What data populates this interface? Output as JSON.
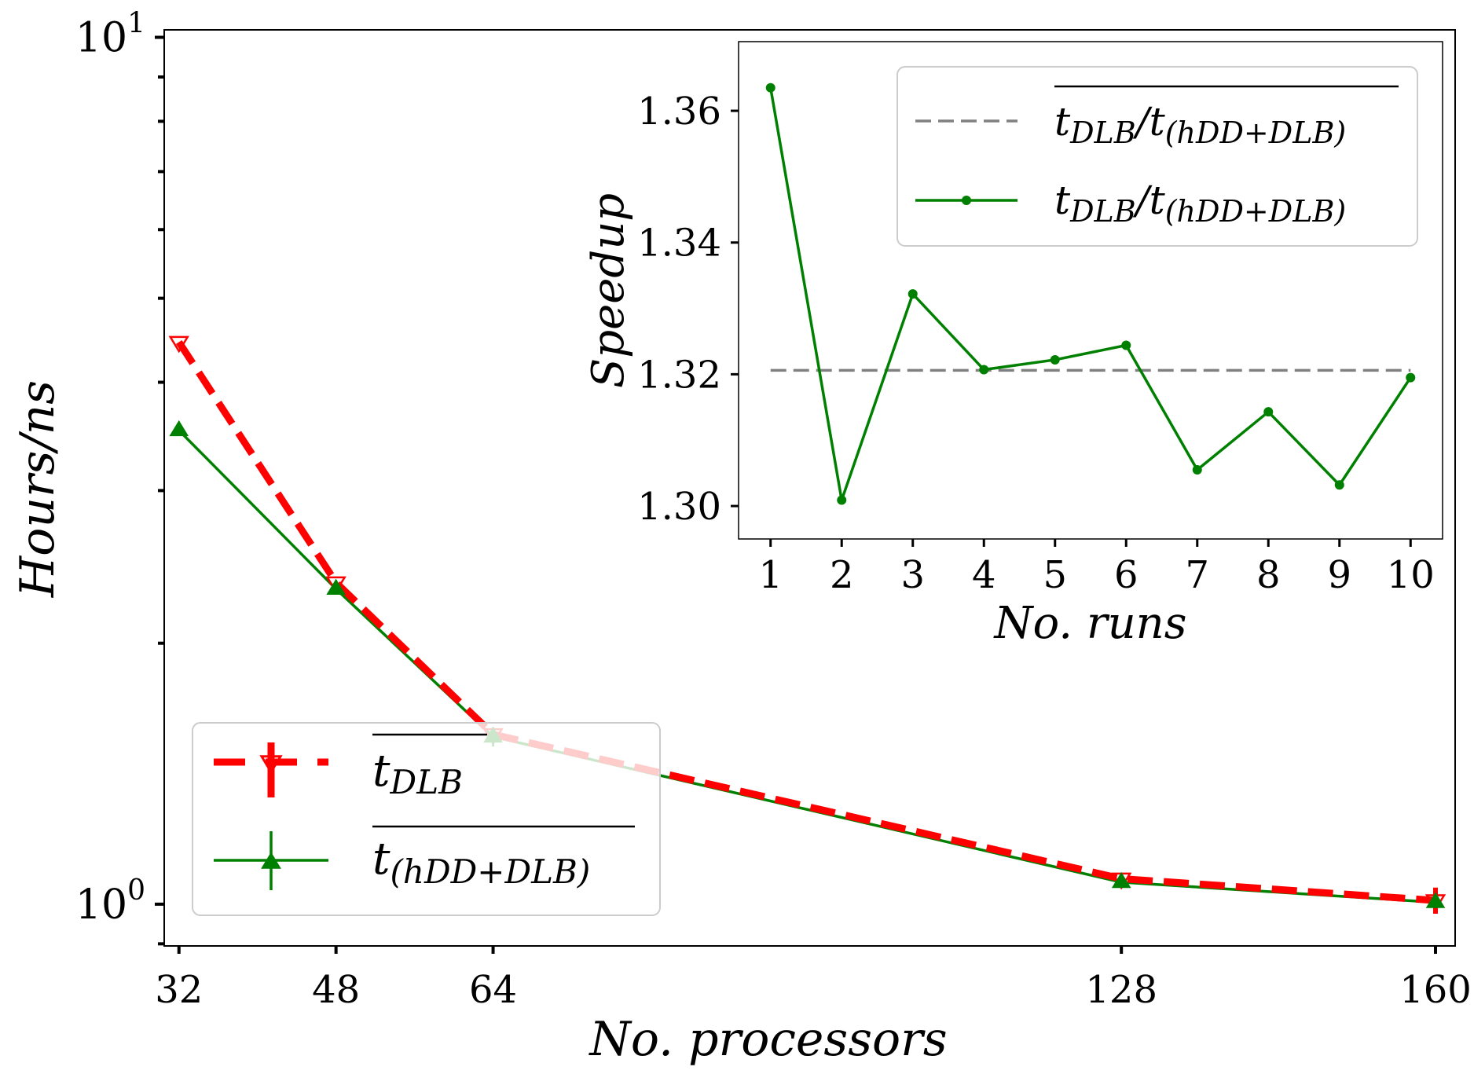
{
  "chart_data": [
    {
      "id": "main",
      "type": "line",
      "xscale": "linear",
      "yscale": "log",
      "xlabel": "No. processors",
      "ylabel": "Hours/ns",
      "x": [
        32,
        48,
        64,
        128,
        160
      ],
      "xticks": [
        32,
        48,
        64,
        128,
        160
      ],
      "xtick_labels": [
        "32",
        "48",
        "64",
        "128",
        "160"
      ],
      "xlim": [
        30.5,
        162
      ],
      "ylim": [
        0.895,
        10.2
      ],
      "ytick_major": [
        {
          "value": 1,
          "base": "10",
          "exp": "0"
        },
        {
          "value": 10,
          "base": "10",
          "exp": "1"
        }
      ],
      "ytick_minor": [
        0.9,
        2,
        3,
        4,
        5,
        6,
        7,
        8,
        9
      ],
      "grid": false,
      "legend": "bottom-left",
      "series": [
        {
          "name": "t_DLB mean",
          "legend_main": "t",
          "legend_sub": "DLB",
          "color": "#ff0000",
          "style": "dashed",
          "marker": "triangle-down-open",
          "values": [
            4.45,
            2.35,
            1.57,
            1.07,
            1.01
          ],
          "errors": [
            0,
            0,
            0,
            0,
            0.035
          ]
        },
        {
          "name": "t_(hDD+DLB) mean",
          "legend_main": "t",
          "legend_sub": "(hDD+DLB)",
          "color": "#008000",
          "style": "solid",
          "marker": "triangle-up-filled",
          "values": [
            3.52,
            2.31,
            1.56,
            1.06,
            1.005
          ],
          "errors": [
            0,
            0,
            0.04,
            0,
            0
          ]
        }
      ]
    },
    {
      "id": "inset",
      "type": "line",
      "xlabel": "No. runs",
      "ylabel": "Speedup",
      "x": [
        1,
        2,
        3,
        4,
        5,
        6,
        7,
        8,
        9,
        10
      ],
      "xticks": [
        1,
        2,
        3,
        4,
        5,
        6,
        7,
        8,
        9,
        10
      ],
      "xtick_labels": [
        "1",
        "2",
        "3",
        "4",
        "5",
        "6",
        "7",
        "8",
        "9",
        "10"
      ],
      "yticks": [
        1.3,
        1.32,
        1.34,
        1.36
      ],
      "ytick_labels": [
        "1.30",
        "1.32",
        "1.34",
        "1.36"
      ],
      "xlim": [
        0.55,
        10.45
      ],
      "ylim": [
        1.295,
        1.3705
      ],
      "grid": false,
      "legend": "top-right",
      "series": [
        {
          "name": "mean speedup",
          "legend_main": "t",
          "legend_sub": "DLB",
          "legend_main2": "t",
          "legend_sub2": "(hDD+DLB)",
          "overline": true,
          "color": "#808080",
          "style": "dashed",
          "values": [
            1.3206,
            1.3206,
            1.3206,
            1.3206,
            1.3206,
            1.3206,
            1.3206,
            1.3206,
            1.3206,
            1.3206
          ]
        },
        {
          "name": "speedup per run",
          "legend_main": "t",
          "legend_sub": "DLB",
          "legend_main2": "t",
          "legend_sub2": "(hDD+DLB)",
          "overline": false,
          "color": "#008000",
          "style": "solid-dot",
          "values": [
            1.3635,
            1.3009,
            1.3322,
            1.3207,
            1.3222,
            1.3244,
            1.3055,
            1.3143,
            1.3032,
            1.3195
          ]
        }
      ]
    }
  ]
}
